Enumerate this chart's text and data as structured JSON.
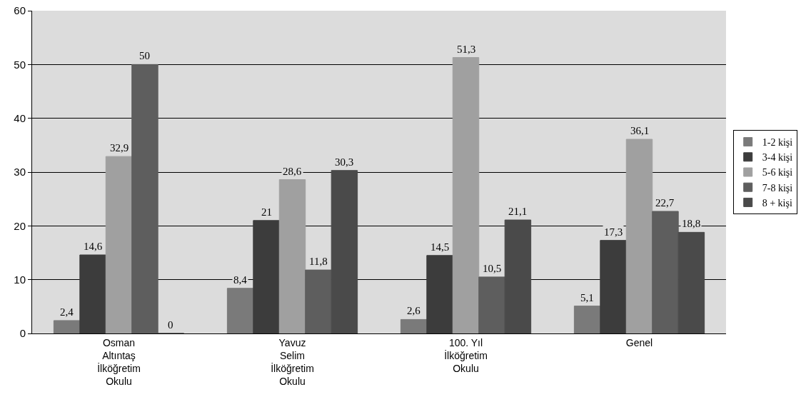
{
  "chart_data": {
    "type": "bar",
    "categories": [
      "Osman Altıntaş İlköğretim Okulu",
      "Yavuz Selim İlköğretim Okulu",
      "100. Yıl İlköğretim Okulu",
      "Genel"
    ],
    "series": [
      {
        "name": "1-2 kişi",
        "color": "#7a7a7a",
        "values": [
          2.4,
          8.4,
          2.6,
          5.1
        ],
        "value_labels": [
          "2,4",
          "8,4",
          "2,6",
          "5,1"
        ]
      },
      {
        "name": "3-4 kişi",
        "color": "#3c3c3c",
        "values": [
          14.6,
          21,
          14.5,
          17.3
        ],
        "value_labels": [
          "14,6",
          "21",
          "14,5",
          "17,3"
        ]
      },
      {
        "name": "5-6 kişi",
        "color": "#a0a0a0",
        "values": [
          32.9,
          28.6,
          51.3,
          36.1
        ],
        "value_labels": [
          "32,9",
          "28,6",
          "51,3",
          "36,1"
        ]
      },
      {
        "name": "7-8 kişi",
        "color": "#5e5e5e",
        "values": [
          50,
          11.8,
          10.5,
          22.7
        ],
        "value_labels": [
          "50",
          "11,8",
          "10,5",
          "22,7"
        ]
      },
      {
        "name": "8 + kişi",
        "color": "#4a4a4a",
        "values": [
          0,
          30.3,
          21.1,
          18.8
        ],
        "value_labels": [
          "0",
          "30,3",
          "21,1",
          "18,8"
        ]
      }
    ],
    "ylim": [
      0,
      60
    ],
    "yticks": [
      0,
      10,
      20,
      30,
      40,
      50,
      60
    ],
    "grid": "y",
    "legend": "right"
  }
}
